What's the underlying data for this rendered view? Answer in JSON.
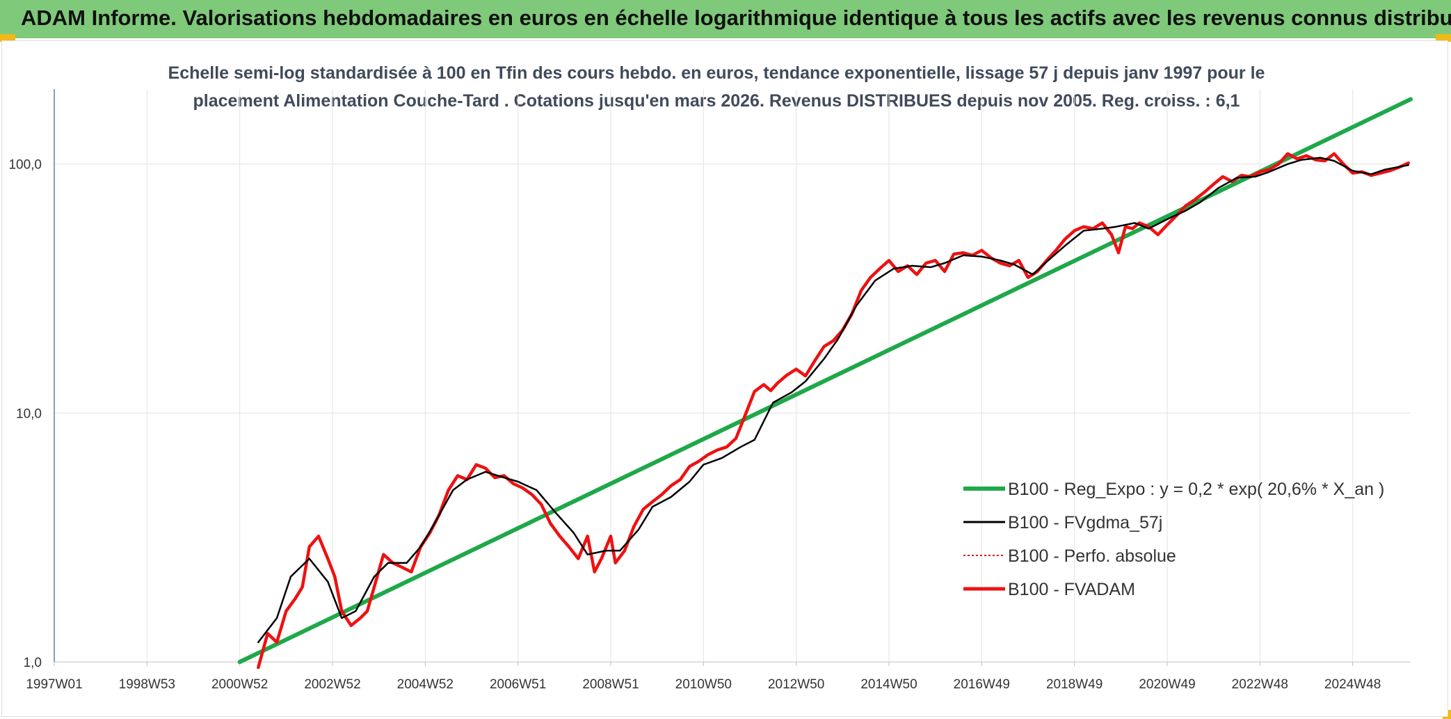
{
  "header": {
    "title": "ADAM Informe. Valorisations hebdomadaires en euros en échelle logarithmique identique à tous les actifs avec les revenus connus distribués"
  },
  "colors": {
    "banner": "#7fc97a",
    "corner_accent": "#f2b817",
    "regression": "#1fa84a",
    "fvgdma": "#000000",
    "perfo": "#e01b1b",
    "fvadam": "#ee1111"
  },
  "chart_data": {
    "type": "line",
    "title_line1": "Echelle semi-log standardisée à 100 en Tfin des cours hebdo. en euros, tendance exponentielle, lissage 57 j depuis janv 1997 pour le",
    "title_line2": "placement Alimentation Couche-Tard . Cotations jusqu'en mars 2026. Revenus DISTRIBUES depuis nov 2005. Reg. croiss. : 6,1",
    "y_scale": "log",
    "ylim": [
      1,
      200
    ],
    "y_ticks": [
      {
        "value": 1,
        "label": "1,0"
      },
      {
        "value": 10,
        "label": "10,0"
      },
      {
        "value": 100,
        "label": "100,0"
      }
    ],
    "xlim": [
      1997.0,
      2026.25
    ],
    "x_ticks": [
      {
        "value": 1997.0,
        "label": "1997W01"
      },
      {
        "value": 1999.0,
        "label": "1998W53"
      },
      {
        "value": 2001.0,
        "label": "2000W52"
      },
      {
        "value": 2003.0,
        "label": "2002W52"
      },
      {
        "value": 2005.0,
        "label": "2004W52"
      },
      {
        "value": 2007.0,
        "label": "2006W51"
      },
      {
        "value": 2009.0,
        "label": "2008W51"
      },
      {
        "value": 2011.0,
        "label": "2010W50"
      },
      {
        "value": 2013.0,
        "label": "2012W50"
      },
      {
        "value": 2015.0,
        "label": "2014W50"
      },
      {
        "value": 2017.0,
        "label": "2016W49"
      },
      {
        "value": 2019.0,
        "label": "2018W49"
      },
      {
        "value": 2021.0,
        "label": "2020W49"
      },
      {
        "value": 2023.0,
        "label": "2022W48"
      },
      {
        "value": 2025.0,
        "label": "2024W48"
      }
    ],
    "grid": true,
    "legend_position": "right",
    "series": [
      {
        "name": "B100 - Reg_Expo : y = 0,2 * exp( 20,6% *  X_an )",
        "color": "#1fa84a",
        "x": [
          2001.0,
          2026.25
        ],
        "y": [
          1.0,
          182.0
        ]
      },
      {
        "name": "B100 - FVgdma_57j",
        "color": "#000000",
        "x": [
          2001.4,
          2001.8,
          2002.1,
          2002.5,
          2002.9,
          2003.2,
          2003.5,
          2003.9,
          2004.2,
          2004.6,
          2004.9,
          2005.2,
          2005.6,
          2005.9,
          2006.3,
          2006.7,
          2007.0,
          2007.4,
          2007.8,
          2008.2,
          2008.5,
          2008.9,
          2009.2,
          2009.6,
          2009.9,
          2010.3,
          2010.7,
          2011.0,
          2011.4,
          2011.8,
          2012.1,
          2012.5,
          2012.9,
          2013.2,
          2013.6,
          2013.9,
          2014.3,
          2014.7,
          2015.1,
          2015.5,
          2015.9,
          2016.2,
          2016.6,
          2017.0,
          2017.4,
          2017.7,
          2018.1,
          2018.4,
          2018.8,
          2019.2,
          2019.6,
          2019.9,
          2020.3,
          2020.6,
          2021.0,
          2021.4,
          2021.7,
          2022.1,
          2022.5,
          2022.9,
          2023.2,
          2023.6,
          2023.9,
          2024.3,
          2024.6,
          2025.0,
          2025.4,
          2025.7,
          2026.2
        ],
        "y": [
          1.2,
          1.5,
          2.2,
          2.6,
          2.1,
          1.5,
          1.6,
          2.2,
          2.5,
          2.5,
          2.9,
          3.6,
          4.9,
          5.4,
          5.8,
          5.5,
          5.3,
          4.9,
          4.0,
          3.3,
          2.7,
          2.8,
          2.8,
          3.4,
          4.2,
          4.6,
          5.3,
          6.2,
          6.6,
          7.3,
          7.8,
          11.0,
          12.1,
          13.4,
          16.5,
          19.8,
          27.0,
          34.0,
          38.0,
          39.0,
          38.5,
          40.0,
          43.0,
          42.5,
          41.0,
          39.5,
          36.0,
          40.5,
          47.0,
          54.0,
          55.0,
          56.0,
          58.0,
          55.0,
          60.0,
          65.0,
          70.0,
          80.0,
          88.0,
          89.0,
          93.0,
          100.0,
          104.0,
          106.0,
          103.0,
          94.0,
          91.0,
          95.0,
          99.0
        ]
      },
      {
        "name": "B100 - Perfo. absolue",
        "color": "#e01b1b",
        "dashed": true,
        "x": [],
        "y": []
      },
      {
        "name": "B100 - FVADAM",
        "color": "#ee1111",
        "x": [
          2001.4,
          2001.6,
          2001.8,
          2002.0,
          2002.2,
          2002.35,
          2002.5,
          2002.7,
          2002.9,
          2003.05,
          2003.2,
          2003.4,
          2003.6,
          2003.75,
          2003.9,
          2004.1,
          2004.3,
          2004.5,
          2004.7,
          2004.9,
          2005.1,
          2005.3,
          2005.5,
          2005.7,
          2005.9,
          2006.1,
          2006.3,
          2006.5,
          2006.7,
          2006.9,
          2007.1,
          2007.3,
          2007.5,
          2007.7,
          2007.9,
          2008.1,
          2008.3,
          2008.5,
          2008.65,
          2008.8,
          2009.0,
          2009.1,
          2009.3,
          2009.5,
          2009.7,
          2009.9,
          2010.1,
          2010.3,
          2010.5,
          2010.7,
          2010.9,
          2011.1,
          2011.3,
          2011.5,
          2011.7,
          2011.9,
          2012.1,
          2012.3,
          2012.45,
          2012.6,
          2012.8,
          2013.0,
          2013.2,
          2013.4,
          2013.6,
          2013.8,
          2014.0,
          2014.2,
          2014.4,
          2014.6,
          2014.8,
          2015.0,
          2015.2,
          2015.4,
          2015.6,
          2015.8,
          2016.0,
          2016.2,
          2016.4,
          2016.6,
          2016.8,
          2017.0,
          2017.2,
          2017.4,
          2017.6,
          2017.8,
          2018.0,
          2018.2,
          2018.4,
          2018.6,
          2018.8,
          2019.0,
          2019.2,
          2019.4,
          2019.6,
          2019.8,
          2019.95,
          2020.1,
          2020.25,
          2020.4,
          2020.6,
          2020.8,
          2021.0,
          2021.2,
          2021.4,
          2021.6,
          2021.8,
          2022.0,
          2022.2,
          2022.4,
          2022.6,
          2022.8,
          2023.0,
          2023.2,
          2023.4,
          2023.6,
          2023.8,
          2024.0,
          2024.2,
          2024.4,
          2024.6,
          2024.8,
          2025.0,
          2025.2,
          2025.4,
          2025.6,
          2025.8,
          2026.0,
          2026.2
        ],
        "y": [
          0.95,
          1.3,
          1.2,
          1.6,
          1.8,
          2.0,
          2.9,
          3.2,
          2.6,
          2.2,
          1.6,
          1.4,
          1.5,
          1.6,
          2.0,
          2.7,
          2.5,
          2.4,
          2.3,
          2.9,
          3.3,
          3.9,
          4.9,
          5.6,
          5.4,
          6.2,
          6.0,
          5.5,
          5.6,
          5.2,
          5.0,
          4.7,
          4.3,
          3.6,
          3.2,
          2.9,
          2.6,
          3.2,
          2.3,
          2.6,
          3.2,
          2.5,
          2.8,
          3.5,
          4.1,
          4.4,
          4.7,
          5.1,
          5.4,
          6.1,
          6.4,
          6.8,
          7.1,
          7.3,
          7.9,
          9.8,
          12.2,
          13.0,
          12.3,
          13.2,
          14.2,
          15.0,
          14.1,
          16.2,
          18.5,
          19.5,
          21.5,
          25.0,
          31.0,
          35.0,
          38.0,
          41.0,
          37.0,
          39.0,
          36.0,
          40.0,
          41.0,
          37.0,
          43.5,
          44.0,
          43.0,
          45.0,
          42.0,
          40.0,
          39.0,
          41.0,
          35.0,
          37.0,
          41.0,
          45.0,
          50.0,
          54.0,
          56.0,
          55.0,
          58.0,
          52.0,
          44.0,
          56.0,
          55.0,
          58.0,
          56.0,
          52.0,
          57.0,
          62.0,
          68.0,
          72.0,
          77.0,
          83.0,
          89.0,
          85.0,
          90.0,
          89.0,
          93.0,
          95.0,
          100.0,
          110.0,
          105.0,
          108.0,
          104.0,
          103.0,
          110.0,
          100.0,
          92.0,
          93.0,
          90.0,
          92.0,
          94.0,
          97.0,
          101.0
        ]
      }
    ]
  }
}
